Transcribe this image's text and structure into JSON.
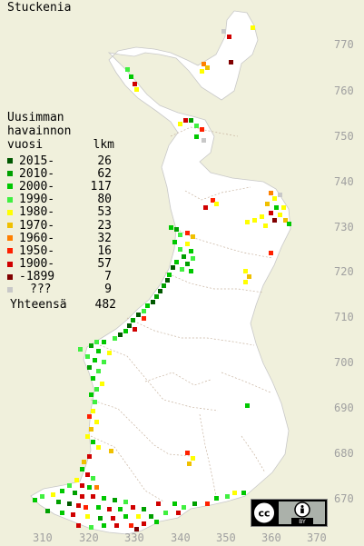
{
  "title": "Stuckenia",
  "legend": {
    "heading_line1": "Uusimman",
    "heading_line2": "havainnon",
    "heading_col_left": "vuosi",
    "heading_col_right": "lkm",
    "items": [
      {
        "label": "2015-",
        "count": "26",
        "color": "#005800"
      },
      {
        "label": "2010-",
        "count": "62",
        "color": "#00a000"
      },
      {
        "label": "2000-",
        "count": "117",
        "color": "#00c800"
      },
      {
        "label": "1990-",
        "count": "80",
        "color": "#40f040"
      },
      {
        "label": "1980-",
        "count": "53",
        "color": "#ffff00"
      },
      {
        "label": "1970-",
        "count": "23",
        "color": "#f0c000"
      },
      {
        "label": "1960-",
        "count": "32",
        "color": "#ff8000"
      },
      {
        "label": "1950-",
        "count": "16",
        "color": "#ff2000"
      },
      {
        "label": "1900-",
        "count": "57",
        "color": "#d00000"
      },
      {
        "label": "-1899",
        "count": "7",
        "color": "#800000"
      },
      {
        "label": "???",
        "count": "9",
        "color": "#c8c8c8"
      }
    ],
    "total_label": "Yhteensä",
    "total_count": "482"
  },
  "y_axis_labels": [
    "770",
    "760",
    "750",
    "740",
    "730",
    "720",
    "710",
    "700",
    "690",
    "680",
    "670"
  ],
  "x_axis_labels": [
    "310",
    "320",
    "330",
    "340",
    "350",
    "360",
    "370"
  ],
  "license": {
    "cc_text": "cc",
    "by_text": "BY"
  }
}
